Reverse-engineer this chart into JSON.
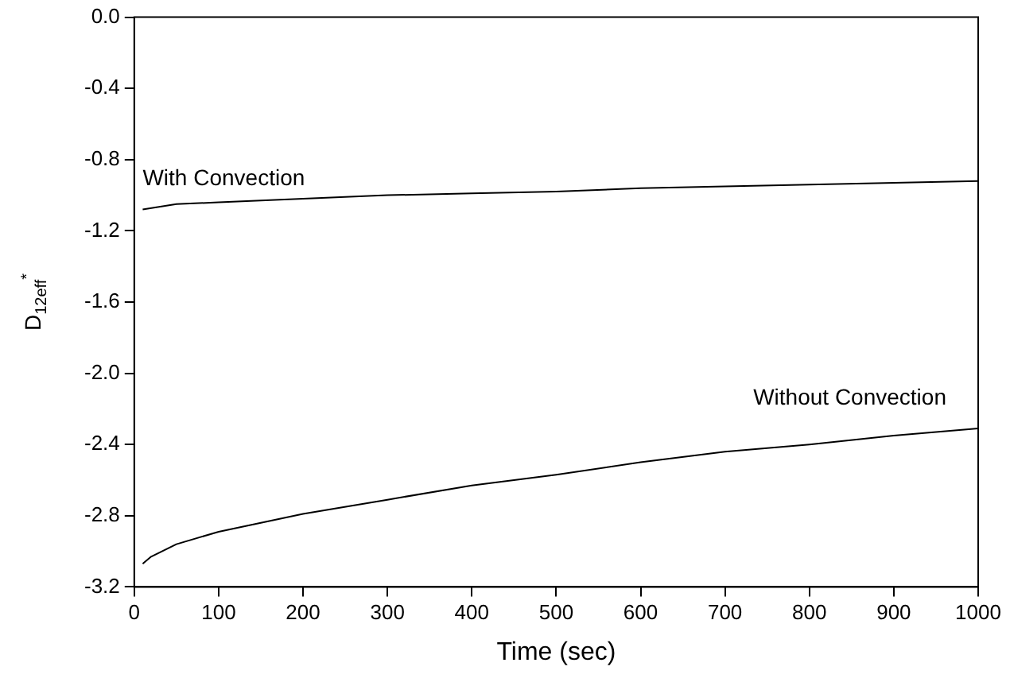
{
  "chart_data": {
    "type": "line",
    "xlabel": "Time (sec)",
    "ylabel": "D$_{12eff}$$^{*}$",
    "xlim": [
      0,
      1000
    ],
    "xticks": [
      0,
      100,
      200,
      300,
      400,
      500,
      600,
      700,
      800,
      900,
      1000
    ],
    "ylim": [
      -3.2,
      0.0
    ],
    "yticks": [
      {
        "value": -3.2,
        "label": "-3.2"
      },
      {
        "value": -2.8,
        "label": "-2.8"
      },
      {
        "value": -2.4,
        "label": "-2.4"
      },
      {
        "value": -2.0,
        "label": "-2.0"
      },
      {
        "value": -1.6,
        "label": "-1.6"
      },
      {
        "value": -1.2,
        "label": "-1.2"
      },
      {
        "value": -0.8,
        "label": "-0.8"
      },
      {
        "value": -0.4,
        "label": "-0.4"
      },
      {
        "value": 0,
        "label": "0.0"
      }
    ],
    "grid": false,
    "legend": false,
    "marker": "none",
    "line_style": "solid",
    "series": [
      {
        "name": "With Convection",
        "color": "#000000",
        "x": [
          10,
          50,
          100,
          200,
          300,
          400,
          500,
          600,
          700,
          800,
          900,
          1000
        ],
        "values": [
          -1.08,
          -1.05,
          -1.04,
          -1.02,
          -1.0,
          -0.99,
          -0.98,
          -0.96,
          -0.95,
          -0.94,
          -0.93,
          -0.92
        ]
      },
      {
        "name": "Without Convection",
        "color": "#000000",
        "x": [
          10,
          20,
          50,
          100,
          150,
          200,
          300,
          400,
          500,
          600,
          700,
          800,
          900,
          1000
        ],
        "values": [
          -3.07,
          -3.03,
          -2.96,
          -2.89,
          -2.84,
          -2.79,
          -2.71,
          -2.63,
          -2.57,
          -2.5,
          -2.44,
          -2.4,
          -2.35,
          -2.31
        ]
      }
    ]
  }
}
